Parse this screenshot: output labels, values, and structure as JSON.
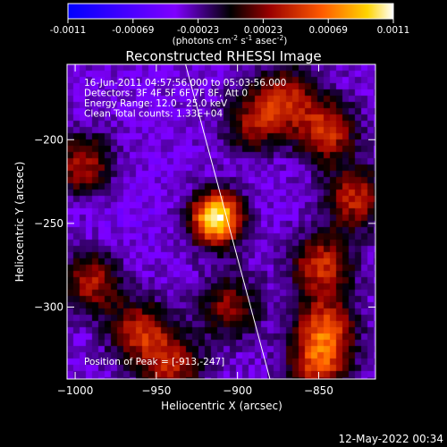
{
  "chart_data": {
    "type": "heatmap",
    "title": "Reconstructed RHESSI Image",
    "xlabel": "Heliocentric X (arcsec)",
    "ylabel": "Heliocentric Y (arcsec)",
    "xlim": [
      -1005,
      -815
    ],
    "ylim": [
      -343,
      -155
    ],
    "xticks": [
      -1000,
      -950,
      -900,
      -850
    ],
    "yticks": [
      -200,
      -250,
      -300
    ],
    "colorbar": {
      "range": [
        -0.0011,
        0.0011
      ],
      "ticks": [
        "-0.0011",
        "-0.00069",
        "-0.00023",
        "0.00023",
        "0.00069",
        "0.0011"
      ],
      "label_prefix": "(photons cm",
      "label_sup1": "-2",
      "label_mid1": " s",
      "label_sup2": "-1",
      "label_mid2": " asec",
      "label_sup3": "-2",
      "label_suffix": ")"
    },
    "annotations": [
      "16-Jun-2011 04:57:56.000 to 05:03:56.000",
      "Detectors: 3F 4F 5F 6F 7F 8F, Att 0",
      "Energy Range: 12.0 - 25.0 keV",
      "Clean     Total counts: 1.33E+04"
    ],
    "peak_label": "Position of Peak = [-913,-247]",
    "peak": [
      -913,
      -247
    ],
    "limb_line": [
      [
        -932,
        -155
      ],
      [
        -880,
        -343
      ]
    ],
    "footer": "12-May-2022 00:34",
    "features": [
      {
        "kind": "source",
        "x": -913,
        "y": -247,
        "value": 0.0011
      },
      {
        "kind": "hot",
        "x": -845,
        "y": -195,
        "value": 0.0005
      },
      {
        "kind": "hot",
        "x": -828,
        "y": -235,
        "value": 0.00045
      },
      {
        "kind": "hot",
        "x": -848,
        "y": -275,
        "value": 0.0005
      },
      {
        "kind": "hot",
        "x": -846,
        "y": -312,
        "value": 0.00055
      },
      {
        "kind": "hot",
        "x": -850,
        "y": -335,
        "value": 0.0005
      },
      {
        "kind": "hot",
        "x": -870,
        "y": -175,
        "value": 0.0004
      },
      {
        "kind": "hot",
        "x": -995,
        "y": -215,
        "value": 0.0004
      },
      {
        "kind": "hot",
        "x": -990,
        "y": -285,
        "value": 0.0004
      },
      {
        "kind": "hot",
        "x": -960,
        "y": -315,
        "value": 0.00045
      },
      {
        "kind": "hot",
        "x": -940,
        "y": -335,
        "value": 0.0004
      },
      {
        "kind": "hot",
        "x": -905,
        "y": -300,
        "value": 0.0003
      },
      {
        "kind": "hot",
        "x": -890,
        "y": -190,
        "value": 0.0003
      },
      {
        "kind": "cold",
        "x": -972,
        "y": -247,
        "value": -0.0004
      },
      {
        "kind": "cold",
        "x": -955,
        "y": -210,
        "value": -0.00035
      },
      {
        "kind": "cold",
        "x": -880,
        "y": -235,
        "value": -0.00035
      },
      {
        "kind": "cold",
        "x": -900,
        "y": -275,
        "value": -0.0003
      }
    ]
  }
}
